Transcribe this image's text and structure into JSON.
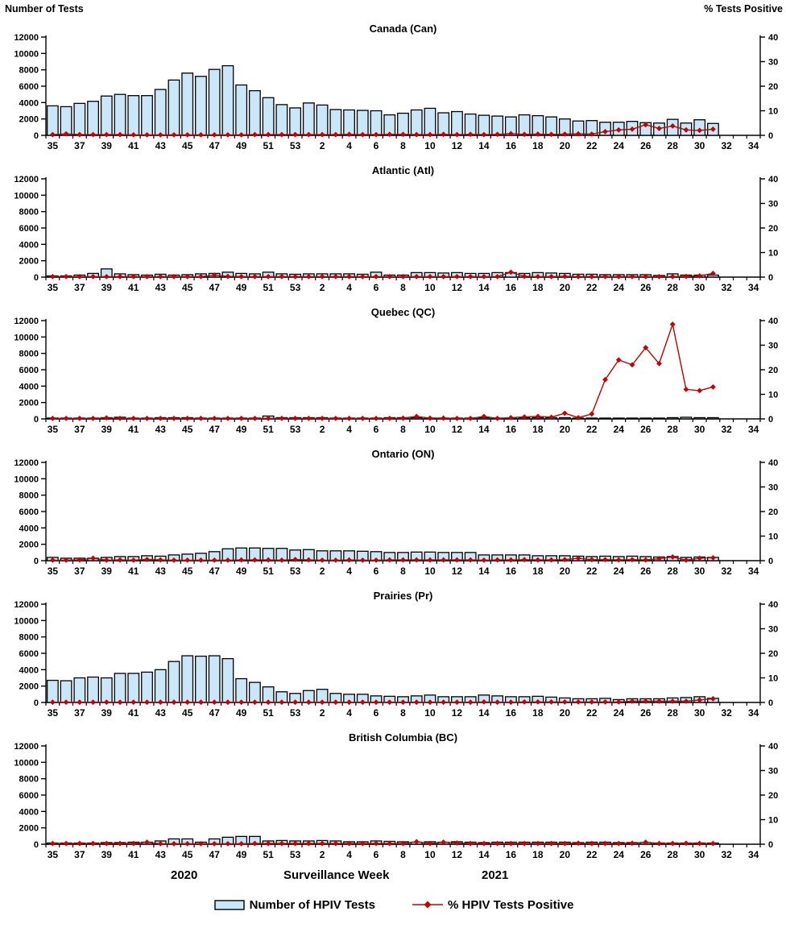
{
  "header": {
    "left_axis_label": "Number of Tests",
    "right_axis_label": "% Tests Positive"
  },
  "footer": {
    "year_left": "2020",
    "axis_label": "Surveillance Week",
    "year_right": "2021"
  },
  "legend": {
    "tests_label": "Number of HPIV Tests",
    "pct_label": "% HPIV Tests Positive"
  },
  "colors": {
    "bar_fill": "#C9E7F8",
    "bar_stroke": "#000000",
    "line": "#C00000"
  },
  "chart_data": {
    "type": "bar+line multi-panel",
    "xlabel": "Surveillance Week",
    "ylabel_left": "Number of Tests",
    "ylabel_right": "% Tests Positive",
    "ylim_left": [
      0,
      12000
    ],
    "yticks_left": [
      0,
      2000,
      4000,
      6000,
      8000,
      10000,
      12000
    ],
    "ylim_right": [
      0,
      40
    ],
    "yticks_right": [
      0,
      10,
      20,
      30,
      40
    ],
    "legend_position": "bottom",
    "grid": false,
    "categories": [
      "35",
      "36",
      "37",
      "38",
      "39",
      "40",
      "41",
      "42",
      "43",
      "44",
      "45",
      "46",
      "47",
      "48",
      "49",
      "50",
      "51",
      "52",
      "53",
      "1",
      "2",
      "3",
      "4",
      "5",
      "6",
      "7",
      "8",
      "9",
      "10",
      "11",
      "12",
      "13",
      "14",
      "15",
      "16",
      "17",
      "18",
      "19",
      "20",
      "21",
      "22",
      "23",
      "24",
      "25",
      "26",
      "27",
      "28",
      "29",
      "30",
      "31",
      "32",
      "33",
      "34"
    ],
    "panels": [
      {
        "title": "Canada (Can)",
        "tests": [
          3600,
          3500,
          3900,
          4150,
          4800,
          5000,
          4850,
          4850,
          5600,
          6750,
          7600,
          7200,
          8050,
          8500,
          6150,
          5450,
          4600,
          3750,
          3350,
          3950,
          3700,
          3150,
          3100,
          3050,
          3000,
          2500,
          2700,
          3100,
          3300,
          2750,
          2900,
          2600,
          2450,
          2350,
          2250,
          2500,
          2400,
          2250,
          2000,
          1750,
          1800,
          1600,
          1600,
          1700,
          1550,
          1500,
          1950,
          1500,
          1900,
          1450,
          null,
          null,
          null
        ],
        "pct_positive": [
          0.3,
          0.6,
          0.3,
          0.3,
          0.3,
          0.3,
          0.2,
          0.2,
          0.2,
          0.2,
          0.2,
          0.2,
          0.2,
          0.2,
          0.2,
          0.3,
          0.3,
          0.3,
          0.3,
          0.3,
          0.3,
          0.3,
          0.4,
          0.3,
          0.3,
          0.4,
          0.4,
          0.3,
          0.3,
          0.4,
          0.3,
          0.4,
          0.3,
          0.4,
          0.7,
          0.4,
          0.5,
          0.4,
          0.5,
          0.6,
          0.5,
          1.5,
          2.2,
          2.5,
          4.3,
          2.8,
          3.8,
          2.2,
          2.0,
          2.5,
          null,
          null,
          null
        ]
      },
      {
        "title": "Atlantic (Atl)",
        "tests": [
          150,
          150,
          250,
          450,
          1000,
          400,
          300,
          250,
          350,
          250,
          300,
          400,
          450,
          600,
          450,
          400,
          600,
          400,
          350,
          400,
          400,
          400,
          400,
          350,
          600,
          250,
          250,
          550,
          550,
          500,
          550,
          450,
          450,
          550,
          550,
          450,
          550,
          500,
          450,
          350,
          350,
          300,
          300,
          300,
          300,
          200,
          400,
          250,
          250,
          250,
          null,
          null,
          null
        ],
        "pct_positive": [
          0.2,
          0.2,
          0.2,
          0.2,
          0.2,
          0.2,
          0.2,
          0.2,
          0.2,
          0.2,
          0.2,
          0.2,
          0.8,
          0.3,
          0.2,
          0.2,
          0.2,
          0.2,
          0.2,
          0.2,
          0.2,
          0.2,
          0.2,
          0.2,
          0.2,
          0.2,
          0.2,
          0.2,
          0.2,
          0.2,
          0.2,
          0.2,
          0.2,
          0.2,
          2.0,
          0.3,
          0.2,
          0.2,
          0.3,
          0.2,
          0.2,
          0.2,
          0.2,
          0.2,
          0.2,
          0.2,
          0.2,
          0.3,
          0.5,
          1.5,
          null,
          null,
          null
        ]
      },
      {
        "title": "Quebec (QC)",
        "tests": [
          100,
          100,
          100,
          100,
          150,
          200,
          100,
          100,
          150,
          150,
          150,
          100,
          100,
          100,
          100,
          100,
          350,
          150,
          150,
          150,
          150,
          100,
          100,
          100,
          100,
          150,
          150,
          150,
          100,
          100,
          100,
          100,
          150,
          100,
          100,
          150,
          150,
          150,
          150,
          100,
          100,
          100,
          100,
          100,
          100,
          100,
          150,
          200,
          150,
          150,
          null,
          null,
          null
        ],
        "pct_positive": [
          0.2,
          0.2,
          0.2,
          0.2,
          0.4,
          0.2,
          0.2,
          0.2,
          0.2,
          0.2,
          0.2,
          0.2,
          0.2,
          0.2,
          0.2,
          0.2,
          0.2,
          0.2,
          0.2,
          0.2,
          0.2,
          0.2,
          0.2,
          0.2,
          0.2,
          0.2,
          0.3,
          1.0,
          0.3,
          0.3,
          0.2,
          0.2,
          1.0,
          0.2,
          0.5,
          0.8,
          1.0,
          0.7,
          2.3,
          0.5,
          2.0,
          16.0,
          24.0,
          22.0,
          29.0,
          22.5,
          38.5,
          12.0,
          11.5,
          13.0,
          null,
          null,
          null
        ]
      },
      {
        "title": "Ontario (ON)",
        "tests": [
          400,
          300,
          300,
          300,
          400,
          500,
          500,
          600,
          550,
          700,
          800,
          900,
          1100,
          1450,
          1550,
          1550,
          1500,
          1500,
          1300,
          1350,
          1200,
          1200,
          1200,
          1150,
          1100,
          1000,
          1000,
          1050,
          1050,
          1000,
          1000,
          1000,
          700,
          700,
          700,
          700,
          600,
          600,
          600,
          550,
          500,
          550,
          500,
          550,
          500,
          450,
          500,
          400,
          450,
          400,
          null,
          null,
          null
        ],
        "pct_positive": [
          0.2,
          0.2,
          0.3,
          1.0,
          0.2,
          0.3,
          0.2,
          0.5,
          0.3,
          0.2,
          0.2,
          0.2,
          0.2,
          0.2,
          0.3,
          0.3,
          0.3,
          0.2,
          0.5,
          0.3,
          0.2,
          0.2,
          0.3,
          0.2,
          0.2,
          0.3,
          0.3,
          0.3,
          0.3,
          0.3,
          0.3,
          0.3,
          0.2,
          0.3,
          0.3,
          0.4,
          0.3,
          0.3,
          0.4,
          1.0,
          0.4,
          0.4,
          0.3,
          0.4,
          0.3,
          0.8,
          1.5,
          0.2,
          1.0,
          1.2,
          null,
          null,
          null
        ]
      },
      {
        "title": "Prairies (Pr)",
        "tests": [
          2700,
          2650,
          3000,
          3100,
          3000,
          3550,
          3550,
          3700,
          4000,
          5000,
          5700,
          5650,
          5700,
          5350,
          2900,
          2450,
          1900,
          1300,
          1100,
          1450,
          1600,
          1100,
          1000,
          1000,
          800,
          750,
          700,
          800,
          900,
          700,
          700,
          700,
          900,
          800,
          700,
          700,
          750,
          650,
          550,
          450,
          450,
          500,
          350,
          450,
          450,
          450,
          550,
          600,
          700,
          500,
          null,
          null,
          null
        ],
        "pct_positive": [
          0.1,
          0.1,
          0.1,
          0.1,
          0.1,
          0.1,
          0.1,
          0.1,
          0.1,
          0.1,
          0.1,
          0.1,
          0.1,
          0.1,
          0.1,
          0.1,
          0.1,
          0.1,
          0.1,
          0.1,
          0.1,
          0.1,
          0.1,
          0.1,
          0.1,
          0.1,
          0.1,
          0.1,
          0.1,
          0.1,
          0.1,
          0.1,
          0.2,
          0.1,
          0.1,
          0.2,
          0.2,
          0.2,
          0.2,
          0.2,
          0.2,
          0.2,
          0.2,
          0.5,
          0.5,
          0.5,
          0.5,
          0.5,
          1.0,
          1.5,
          null,
          null,
          null
        ]
      },
      {
        "title": "British Columbia (BC)",
        "tests": [
          150,
          150,
          150,
          150,
          200,
          200,
          250,
          250,
          400,
          650,
          650,
          250,
          650,
          850,
          950,
          950,
          400,
          450,
          400,
          400,
          450,
          400,
          300,
          300,
          400,
          350,
          300,
          250,
          300,
          250,
          300,
          250,
          200,
          250,
          250,
          250,
          250,
          250,
          250,
          200,
          250,
          250,
          200,
          200,
          200,
          150,
          150,
          150,
          150,
          150,
          null,
          null,
          null
        ],
        "pct_positive": [
          0.3,
          0.3,
          0.3,
          0.3,
          0.3,
          0.3,
          0.3,
          0.8,
          0.2,
          0.2,
          0.2,
          0.2,
          0.2,
          0.2,
          0.2,
          0.3,
          0.3,
          0.3,
          0.3,
          0.3,
          0.3,
          0.3,
          0.3,
          0.3,
          0.3,
          0.3,
          0.3,
          1.0,
          0.3,
          0.8,
          0.5,
          0.3,
          0.3,
          0.3,
          0.3,
          0.3,
          0.3,
          0.3,
          0.3,
          0.4,
          0.3,
          0.3,
          0.3,
          0.4,
          0.8,
          0.3,
          0.3,
          0.4,
          0.3,
          0.3,
          null,
          null,
          null
        ]
      }
    ]
  }
}
